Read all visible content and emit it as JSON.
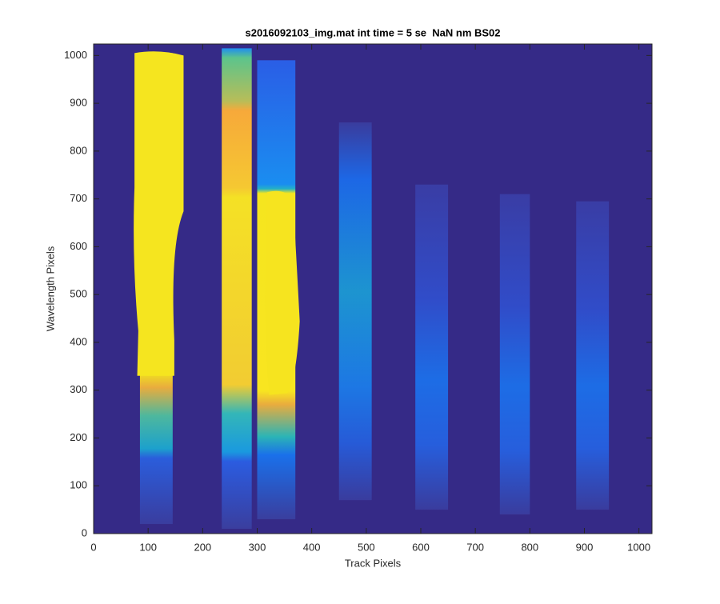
{
  "chart_data": {
    "type": "image",
    "title": "s2016092103_img.mat int time = 5 se  NaN nm BS02",
    "x_label": "Track Pixels",
    "y_label": "Wavelength Pixels",
    "xlim": [
      0,
      1024
    ],
    "ylim": [
      0,
      1024
    ],
    "xticks": [
      0,
      100,
      200,
      300,
      400,
      500,
      600,
      700,
      800,
      900,
      1000
    ],
    "yticks": [
      0,
      100,
      200,
      300,
      400,
      500,
      600,
      700,
      800,
      900,
      1000
    ],
    "grid": false
  }
}
